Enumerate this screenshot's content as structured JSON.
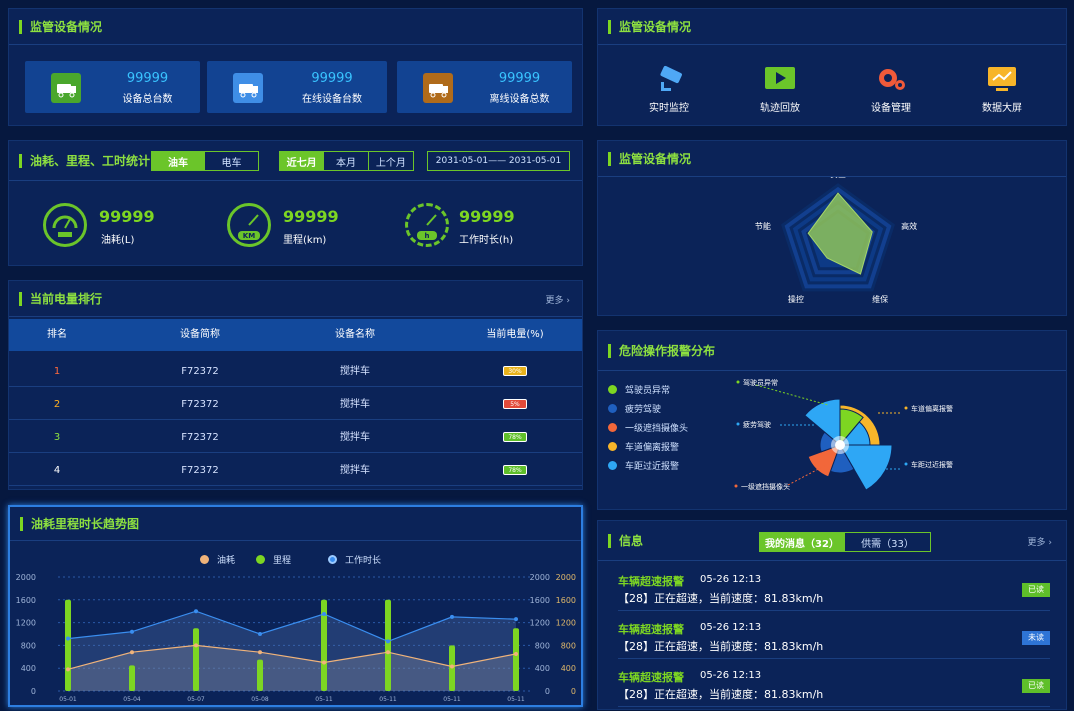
{
  "device_panel": {
    "title": "监管设备情况",
    "stats": [
      {
        "value": "99999",
        "label": "设备总台数",
        "icon": "truck-icon",
        "color": "#4aa72c"
      },
      {
        "value": "99999",
        "label": "在线设备台数",
        "icon": "truck-icon",
        "color": "#3f8ee6"
      },
      {
        "value": "99999",
        "label": "离线设备总数",
        "icon": "truck-icon",
        "color": "#b06b1a"
      }
    ]
  },
  "quick_panel": {
    "title": "监管设备情况",
    "items": [
      {
        "label": "实时监控",
        "icon": "camera-icon"
      },
      {
        "label": "轨迹回放",
        "icon": "play-icon"
      },
      {
        "label": "设备管理",
        "icon": "gear-icon"
      },
      {
        "label": "数据大屏",
        "icon": "monitor-chart-icon"
      }
    ]
  },
  "fuel_panel": {
    "title": "油耗、里程、工时统计",
    "vehicle_tabs": [
      "油车",
      "电车"
    ],
    "range_tabs": [
      "近七月",
      "本月",
      "上个月"
    ],
    "date_range": "2031-05-01—— 2031-05-01",
    "gauges": [
      {
        "value": "99999",
        "label": "油耗(L)",
        "icon": "fuel-gauge-icon"
      },
      {
        "value": "99999",
        "label": "里程(km)",
        "icon": "odometer-icon",
        "unit": "KM"
      },
      {
        "value": "99999",
        "label": "工作时长(h)",
        "icon": "hour-gauge-icon",
        "unit": "h"
      }
    ]
  },
  "radar_panel": {
    "title": "监管设备情况",
    "axes": [
      "安全",
      "高效",
      "维保",
      "操控",
      "节能"
    ],
    "values": [
      0.86,
      0.62,
      0.66,
      0.32,
      0.54
    ]
  },
  "battery_panel": {
    "title": "当前电量排行",
    "more": "更多 ›",
    "headers": [
      "排名",
      "设备简称",
      "设备名称",
      "当前电量(%)"
    ],
    "rows": [
      {
        "rank": "1",
        "short": "F72372",
        "name": "搅拌车",
        "battery": "30%",
        "battery_color": "#e8b21c",
        "rank_color": "#ff6a3c"
      },
      {
        "rank": "2",
        "short": "F72372",
        "name": "搅拌车",
        "battery": "5%",
        "battery_color": "#e24b3a",
        "rank_color": "#ffb020"
      },
      {
        "rank": "3",
        "short": "F72372",
        "name": "搅拌车",
        "battery": "78%",
        "battery_color": "#5fbf2a",
        "rank_color": "#8de040"
      },
      {
        "rank": "4",
        "short": "F72372",
        "name": "搅拌车",
        "battery": "78%",
        "battery_color": "#5fbf2a",
        "rank_color": "#ffffff"
      }
    ]
  },
  "alarm_panel": {
    "title": "危险操作报警分布",
    "legend": [
      {
        "label": "驾驶员异常",
        "color": "#7dd622"
      },
      {
        "label": "疲劳驾驶",
        "color": "#1f5fbf"
      },
      {
        "label": "一级遮挡摄像头",
        "color": "#f2673a"
      },
      {
        "label": "车道偏离报警",
        "color": "#f7b52a"
      },
      {
        "label": "车距过近报警",
        "color": "#2ea7f5"
      }
    ],
    "callouts": [
      "驾驶员异常",
      "车道偏离报警",
      "疲劳驾驶",
      "车距过近报警",
      "一级遮挡摄像头"
    ]
  },
  "trend_panel": {
    "title": "油耗里程时长趋势图",
    "legend": [
      "油耗",
      "里程",
      "工作时长"
    ]
  },
  "messages_panel": {
    "title": "信息",
    "tabs": [
      "我的消息（32）",
      "供需（33）"
    ],
    "more": "更多 ›",
    "items": [
      {
        "title": "车辆超速报警",
        "date": "05-26  12:13",
        "body": "【28】正在超速，当前速度：81.83km/h",
        "tag": "已读",
        "tag_color": "#5fbf2a"
      },
      {
        "title": "车辆超速报警",
        "date": "05-26  12:13",
        "body": "【28】正在超速，当前速度：81.83km/h",
        "tag": "未读",
        "tag_color": "#2e74d6"
      },
      {
        "title": "车辆超速报警",
        "date": "05-26  12:13",
        "body": "【28】正在超速，当前速度：81.83km/h",
        "tag": "已读",
        "tag_color": "#5fbf2a"
      }
    ]
  },
  "chart_data": {
    "type": "line",
    "title": "油耗里程时长趋势图",
    "x": [
      "05-01",
      "05-04",
      "05-07",
      "05-08",
      "05-11",
      "05-11",
      "05-11",
      "05-11"
    ],
    "y_left_ticks": [
      "2000",
      "1600",
      "1200",
      "800",
      "400",
      "0"
    ],
    "y_right_ticks_1": [
      "2000",
      "1600",
      "1200",
      "800",
      "400",
      "0"
    ],
    "y_right_ticks_2": [
      "2000",
      "1600",
      "1200",
      "800",
      "400",
      "0"
    ],
    "ylim": [
      0,
      2000
    ],
    "series": [
      {
        "name": "油耗",
        "type": "line",
        "color": "#f0b37a",
        "values": [
          380,
          680,
          800,
          680,
          500,
          680,
          430,
          650
        ]
      },
      {
        "name": "里程",
        "type": "bar",
        "color": "#7dd622",
        "values": [
          1600,
          450,
          1100,
          550,
          1600,
          1600,
          800,
          1100
        ]
      },
      {
        "name": "工作时长",
        "type": "line",
        "color": "#3a8ef0",
        "values": [
          920,
          1040,
          1400,
          1000,
          1350,
          870,
          1300,
          1260
        ]
      }
    ]
  }
}
